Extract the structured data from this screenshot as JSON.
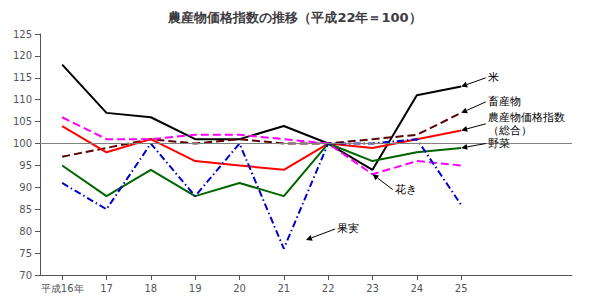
{
  "chart_data": {
    "type": "line",
    "title": "農産物価格指数の推移（平成22年＝100）",
    "x": [
      16,
      17,
      18,
      19,
      20,
      21,
      22,
      23,
      24,
      25
    ],
    "xlim": [
      15.5,
      27.5
    ],
    "xticks": [
      {
        "value": 16,
        "label": "平成16年"
      },
      17,
      18,
      19,
      20,
      21,
      22,
      23,
      24,
      25
    ],
    "ylim": [
      70,
      125
    ],
    "yticks": [
      70,
      75,
      80,
      85,
      90,
      95,
      100,
      105,
      110,
      115,
      120,
      125
    ],
    "grid": false,
    "legend": false,
    "series": [
      {
        "name": "米",
        "color": "#000000",
        "line_style": "solid",
        "values": [
          118,
          107,
          106,
          101,
          101,
          104,
          100,
          94,
          111,
          113
        ]
      },
      {
        "name": "畜産物",
        "color": "#5a0000",
        "line_style": "dashed",
        "values": [
          97,
          99,
          101,
          100,
          101,
          100,
          100,
          101,
          102,
          107
        ]
      },
      {
        "name": "農産物価格指数\n（総合）",
        "color": "#ff0000",
        "line_style": "solid",
        "values": [
          104,
          98,
          101,
          96,
          95,
          94,
          100,
          99,
          101,
          103
        ]
      },
      {
        "name": "野菜",
        "color": "#006400",
        "line_style": "solid",
        "values": [
          95,
          88,
          94,
          88,
          91,
          88,
          100,
          96,
          98,
          99
        ]
      },
      {
        "name": "花き",
        "color": "#ff00ff",
        "line_style": "dashed",
        "values": [
          106,
          101,
          101,
          102,
          102,
          101,
          100,
          93,
          96,
          95
        ]
      },
      {
        "name": "果実",
        "color": "#0000cc",
        "line_style": "dashdot",
        "values": [
          91,
          85,
          100,
          88,
          100,
          76,
          100,
          100,
          101,
          86
        ]
      }
    ],
    "reference_lines": [
      {
        "y": 100,
        "color": "gray"
      }
    ],
    "annotations": [
      {
        "text": "米",
        "x": 25,
        "y": 113,
        "text_x": 25.6,
        "text_y": 115.0
      },
      {
        "text": "畜産物",
        "x": 25,
        "y": 107,
        "text_x": 25.6,
        "text_y": 109.5
      },
      {
        "text": "農産物価格指数\n（総合）",
        "x": 25,
        "y": 103,
        "text_x": 25.6,
        "text_y": 104.5
      },
      {
        "text": "野菜",
        "x": 25,
        "y": 99,
        "text_x": 25.6,
        "text_y": 100.0
      },
      {
        "text": "花き",
        "x": 23,
        "y": 93,
        "text_x": 23.5,
        "text_y": 89.5
      },
      {
        "text": "果実",
        "x": 21.5,
        "y": 78,
        "text_x": 22.2,
        "text_y": 80.5
      }
    ]
  }
}
